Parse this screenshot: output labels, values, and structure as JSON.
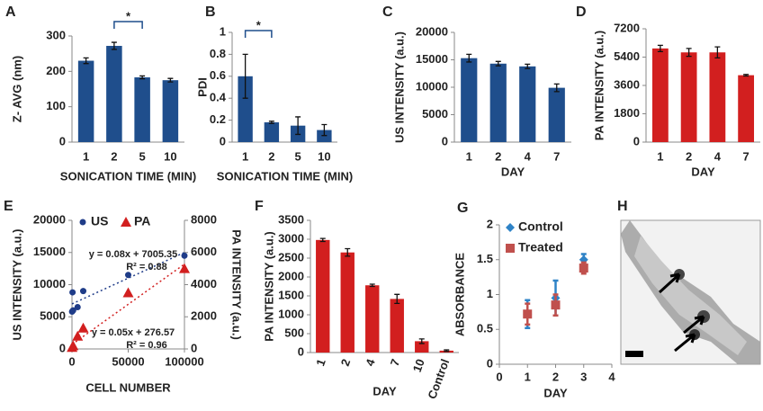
{
  "chart_data": [
    {
      "type": "bar",
      "panel": "A",
      "categories": [
        "1",
        "2",
        "5",
        "10"
      ],
      "values": [
        230,
        272,
        183,
        175
      ],
      "errors": [
        8,
        10,
        4,
        5
      ],
      "color": "#1f4e8c",
      "ylim": [
        0,
        300
      ],
      "yticks": [
        0,
        100,
        200,
        300
      ],
      "ylabel": "Z- AVG (nm)",
      "xlabel": "SONICATION TIME (MIN)",
      "annotation": "*"
    },
    {
      "type": "bar",
      "panel": "B",
      "categories": [
        "1",
        "2",
        "5",
        "10"
      ],
      "values": [
        0.6,
        0.18,
        0.15,
        0.11
      ],
      "errors": [
        0.2,
        0.01,
        0.08,
        0.05
      ],
      "color": "#1f4e8c",
      "ylim": [
        0,
        1
      ],
      "yticks": [
        0,
        0.2,
        0.4,
        0.6,
        0.8,
        1
      ],
      "ylabel": "PDI",
      "xlabel": "SONICATION TIME (MIN)",
      "annotation": "*"
    },
    {
      "type": "bar",
      "panel": "C",
      "categories": [
        "1",
        "2",
        "4",
        "7"
      ],
      "values": [
        15300,
        14300,
        13800,
        9900
      ],
      "errors": [
        700,
        400,
        400,
        700
      ],
      "color": "#1f4e8c",
      "ylim": [
        0,
        20000
      ],
      "yticks": [
        0,
        5000,
        10000,
        15000,
        20000
      ],
      "ylabel": "US INTENSITY (a.u.)",
      "xlabel": "DAY"
    },
    {
      "type": "bar",
      "panel": "D",
      "categories": [
        "1",
        "2",
        "4",
        "7"
      ],
      "values": [
        5950,
        5700,
        5700,
        4250
      ],
      "errors": [
        200,
        250,
        350,
        50
      ],
      "color": "#d21f1f",
      "ylim": [
        0,
        7200
      ],
      "yticks": [
        0,
        1800,
        3600,
        5400,
        7200
      ],
      "ylabel": "PA INTENSITY (a.u.)",
      "xlabel": "DAY"
    },
    {
      "type": "scatter",
      "panel": "E",
      "xlim": [
        0,
        100000
      ],
      "xticks": [
        0,
        50000,
        100000
      ],
      "ylim": [
        0,
        20000
      ],
      "yticks": [
        0,
        5000,
        10000,
        15000,
        20000
      ],
      "y2lim": [
        0,
        8000
      ],
      "y2ticks": [
        0,
        2000,
        4000,
        6000,
        8000
      ],
      "ylabel": "US INTENSITY (a.u.)",
      "y2label": "PA INTENSITY (a.u.)",
      "xlabel": "CELL NUMBER",
      "series": [
        {
          "name": "US",
          "color": "#1f3c88",
          "marker": "circle",
          "x": [
            100,
            500,
            1000,
            5000,
            10000,
            50000,
            100000
          ],
          "values": [
            5800,
            8800,
            6000,
            6500,
            9000,
            11500,
            14500
          ],
          "trendline": {
            "slope": 0.08,
            "intercept": 7005.35,
            "label": "y = 0.08x + 7005.35",
            "r2": "R² = 0.88"
          }
        },
        {
          "name": "PA",
          "color": "#d21f1f",
          "marker": "triangle",
          "axis": "y2",
          "x": [
            100,
            1000,
            5000,
            10000,
            50000,
            100000
          ],
          "values": [
            100,
            200,
            800,
            1300,
            3500,
            5000
          ],
          "trendline": {
            "slope": 0.05,
            "intercept": 276.57,
            "label": "y = 0.05x + 276.57",
            "r2": "R² = 0.96"
          }
        }
      ]
    },
    {
      "type": "bar",
      "panel": "F",
      "categories": [
        "1",
        "2",
        "4",
        "7",
        "10",
        "Control"
      ],
      "values": [
        2980,
        2650,
        1780,
        1420,
        300,
        50
      ],
      "errors": [
        40,
        100,
        30,
        120,
        60,
        20
      ],
      "color": "#d21f1f",
      "ylim": [
        0,
        3500
      ],
      "yticks": [
        0,
        500,
        1000,
        1500,
        2000,
        2500,
        3000,
        3500
      ],
      "ylabel": "PA INTENSITY (a.u.)",
      "xlabel": "DAY"
    },
    {
      "type": "scatter",
      "panel": "G",
      "x": [
        1,
        2,
        3
      ],
      "xlim": [
        0,
        4
      ],
      "xticks": [
        0,
        1,
        2,
        3,
        4
      ],
      "ylim": [
        0,
        2
      ],
      "yticks": [
        0,
        0.5,
        1,
        1.5,
        2
      ],
      "ylabel": "ABSORBANCE",
      "xlabel": "DAY",
      "series": [
        {
          "name": "Control",
          "color": "#2f83c7",
          "marker": "diamond",
          "values": [
            0.72,
            0.95,
            1.5
          ],
          "errors": [
            0.2,
            0.25,
            0.08
          ]
        },
        {
          "name": "Treated",
          "color": "#c0504d",
          "marker": "square",
          "values": [
            0.72,
            0.85,
            1.38
          ],
          "errors": [
            0.15,
            0.15,
            0.08
          ]
        }
      ]
    }
  ],
  "image_panel": {
    "label": "H"
  }
}
